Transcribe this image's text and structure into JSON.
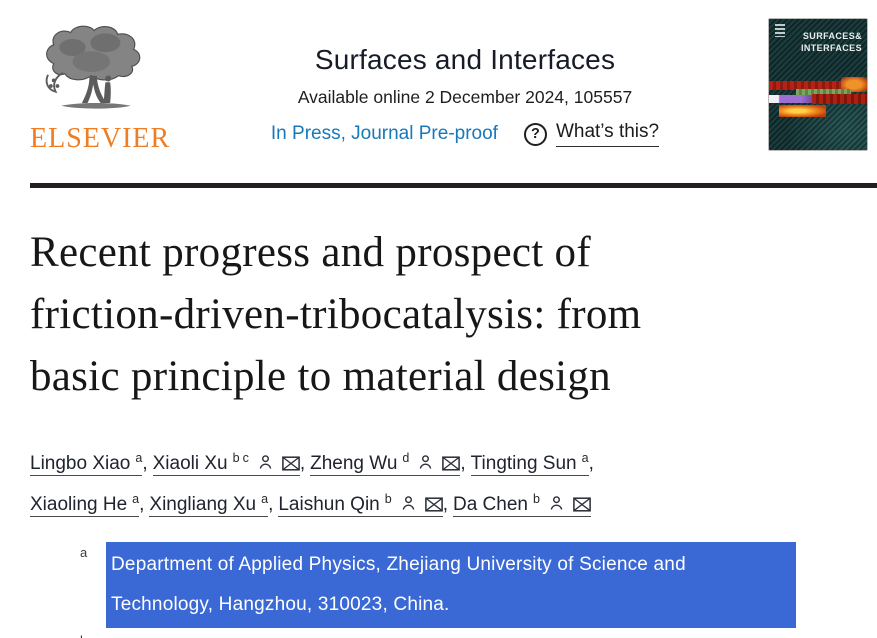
{
  "header": {
    "publisher_wordmark": "ELSEVIER",
    "journal_title": "Surfaces and Interfaces",
    "availability": "Available online 2 December 2024, 105557",
    "in_press_link": "In Press, Journal Pre-proof",
    "whats_this_link": "What’s this?",
    "cover": {
      "title_line1": "SURFACES&",
      "title_line2": "INTERFACES"
    }
  },
  "icons": {
    "help_glyph": "?",
    "profile_icon": "person-outline",
    "email_icon": "envelope-closed"
  },
  "article": {
    "title": "Recent progress and prospect of friction-driven-tribocatalysis: from basic principle to material design",
    "authors": [
      {
        "name": "Lingbo Xiao",
        "sups": [
          "a"
        ],
        "has_profile": false,
        "has_email": false
      },
      {
        "name": "Xiaoli Xu",
        "sups": [
          "b",
          "c"
        ],
        "has_profile": true,
        "has_email": true
      },
      {
        "name": "Zheng Wu",
        "sups": [
          "d"
        ],
        "has_profile": true,
        "has_email": true
      },
      {
        "name": "Tingting Sun",
        "sups": [
          "a"
        ],
        "has_profile": false,
        "has_email": false
      },
      {
        "name": "Xiaoling He",
        "sups": [
          "a"
        ],
        "has_profile": false,
        "has_email": false
      },
      {
        "name": "Xingliang Xu",
        "sups": [
          "a"
        ],
        "has_profile": false,
        "has_email": false
      },
      {
        "name": "Laishun Qin",
        "sups": [
          "b"
        ],
        "has_profile": true,
        "has_email": true
      },
      {
        "name": "Da Chen",
        "sups": [
          "b"
        ],
        "has_profile": true,
        "has_email": true
      }
    ],
    "affiliations": [
      {
        "sup": "a",
        "text": "Department of Applied Physics, Zhejiang University of Science and Technology, Hangzhou, 310023, China.",
        "highlighted": true
      },
      {
        "sup": "b",
        "text": "",
        "highlighted": false
      }
    ]
  },
  "colors": {
    "link_blue": "#1778ba",
    "selection_blue": "#3a68d4",
    "elsevier_orange": "#f07d22",
    "divider_dark": "#231f20",
    "cover_teal": "#153638"
  }
}
